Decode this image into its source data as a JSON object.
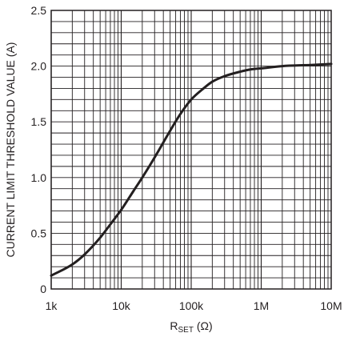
{
  "chart_data": {
    "type": "line",
    "title": "",
    "xlabel_main": "R",
    "xlabel_sub": "SET",
    "xlabel_unit": " (Ω)",
    "ylabel": "CURRENT LIMIT THRESHOLD VALUE (A)",
    "x_scale": "log",
    "xlim": [
      1000,
      10000000
    ],
    "ylim": [
      0,
      2.5
    ],
    "x_ticks": [
      {
        "value": 1000,
        "label": "1k"
      },
      {
        "value": 10000,
        "label": "10k"
      },
      {
        "value": 100000,
        "label": "100k"
      },
      {
        "value": 1000000,
        "label": "1M"
      },
      {
        "value": 10000000,
        "label": "10M"
      }
    ],
    "y_ticks": [
      {
        "value": 0,
        "label": "0"
      },
      {
        "value": 0.5,
        "label": "0.5"
      },
      {
        "value": 1.0,
        "label": "1.0"
      },
      {
        "value": 1.5,
        "label": "1.5"
      },
      {
        "value": 2.0,
        "label": "2.0"
      },
      {
        "value": 2.5,
        "label": "2.5"
      }
    ],
    "grid": true,
    "series": [
      {
        "color": "#231f20",
        "points": [
          {
            "x": 1000,
            "y": 0.12
          },
          {
            "x": 2000,
            "y": 0.22
          },
          {
            "x": 3000,
            "y": 0.31
          },
          {
            "x": 5000,
            "y": 0.46
          },
          {
            "x": 7000,
            "y": 0.58
          },
          {
            "x": 10000,
            "y": 0.71
          },
          {
            "x": 15000,
            "y": 0.88
          },
          {
            "x": 20000,
            "y": 1.0
          },
          {
            "x": 30000,
            "y": 1.18
          },
          {
            "x": 50000,
            "y": 1.42
          },
          {
            "x": 70000,
            "y": 1.57
          },
          {
            "x": 100000,
            "y": 1.7
          },
          {
            "x": 150000,
            "y": 1.8
          },
          {
            "x": 200000,
            "y": 1.86
          },
          {
            "x": 300000,
            "y": 1.91
          },
          {
            "x": 500000,
            "y": 1.95
          },
          {
            "x": 700000,
            "y": 1.97
          },
          {
            "x": 1000000,
            "y": 1.98
          },
          {
            "x": 2000000,
            "y": 2.0
          },
          {
            "x": 5000000,
            "y": 2.01
          },
          {
            "x": 10000000,
            "y": 2.02
          }
        ]
      }
    ]
  }
}
